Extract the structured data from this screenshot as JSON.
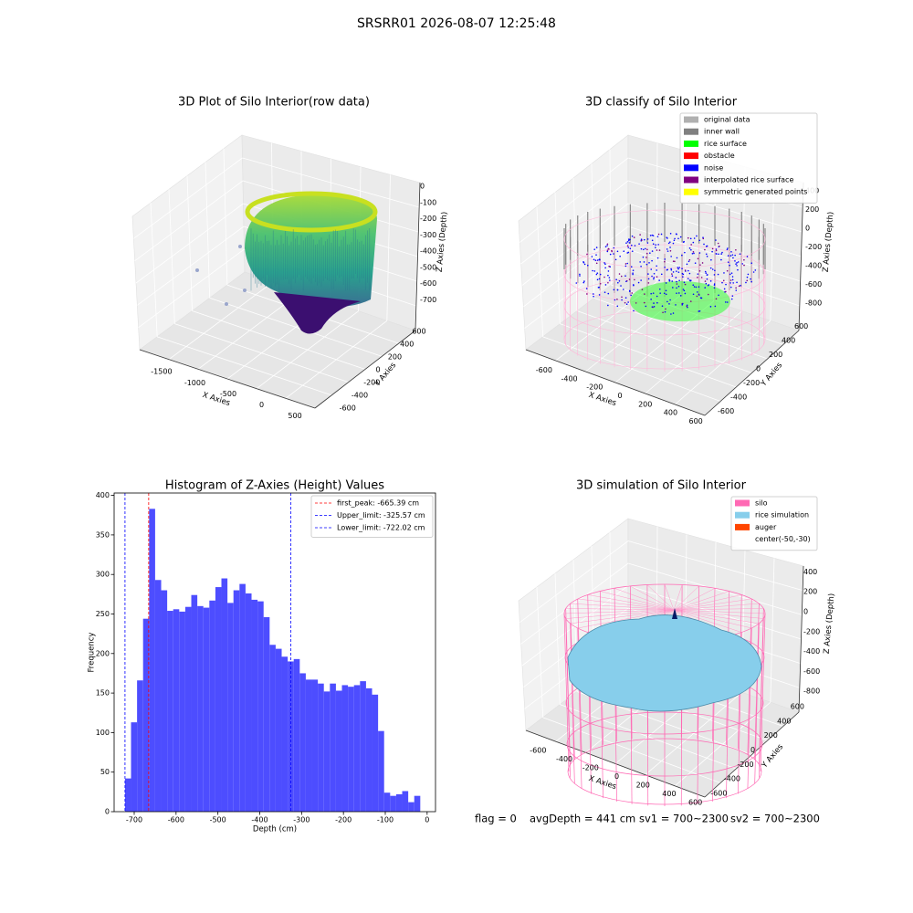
{
  "title": "SRSRR01 2026-08-07 12:25:48",
  "footer": [
    "flag = 0",
    "avgDepth = 441 cm",
    "sv1 = 700~2300",
    "sv2 = 700~2300"
  ],
  "chart_data": [
    {
      "type": "scatter3d",
      "title": "3D Plot of Silo Interior(row data)",
      "xlabel": "X Axies",
      "ylabel": "Y Axies",
      "zlabel": "Z Axies (Depth)",
      "xlim": [
        -1800,
        650
      ],
      "xticks": [
        -1500,
        -1000,
        -500,
        0,
        500
      ],
      "ylim": [
        -700,
        700
      ],
      "yticks": [
        -600,
        -400,
        -200,
        0,
        200,
        400,
        600
      ],
      "zlim": [
        -760,
        40
      ],
      "zticks": [
        0,
        -100,
        -200,
        -300,
        -400,
        -500,
        -600,
        -700
      ]
    },
    {
      "type": "scatter3d",
      "title": "3D classify of Silo Interior",
      "xlabel": "X Axies",
      "ylabel": "Y Axies",
      "zlabel": "Z Axies (Depth)",
      "xlim": [
        -700,
        700
      ],
      "xticks": [
        -600,
        -400,
        -200,
        0,
        200,
        400,
        600
      ],
      "ylim": [
        -700,
        700
      ],
      "yticks": [
        -600,
        -400,
        -200,
        0,
        200,
        400,
        600
      ],
      "zlim": [
        -900,
        450
      ],
      "zticks": [
        400,
        200,
        0,
        -200,
        -400,
        -600,
        -800
      ],
      "legend": "upper right",
      "series": [
        {
          "name": "original data",
          "color": "#b0b0b0"
        },
        {
          "name": "inner wall",
          "color": "#808080"
        },
        {
          "name": "rice surface",
          "color": "#00ff00"
        },
        {
          "name": "obstacle",
          "color": "#ff0000"
        },
        {
          "name": "noise",
          "color": "#0000ff"
        },
        {
          "name": "interpolated rice surface",
          "color": "#800080"
        },
        {
          "name": "symmetric generated points",
          "color": "#ffff00"
        }
      ]
    },
    {
      "type": "histogram",
      "title": "Histogram of Z-Axies (Height) Values",
      "xlabel": "Depth (cm)",
      "ylabel": "Frequency",
      "color": "#4d4dff",
      "bins": [
        -722.0,
        -707.6,
        -693.2,
        -678.8,
        -664.4,
        -650.0,
        -635.6,
        -621.2,
        -606.8,
        -592.4,
        -578.0,
        -563.6,
        -549.2,
        -534.8,
        -520.4,
        -506.0,
        -491.6,
        -477.2,
        -462.8,
        -448.4,
        -434.0,
        -419.6,
        -405.2,
        -390.8,
        -376.4,
        -362.0,
        -347.6,
        -333.2,
        -318.8,
        -304.4,
        -290.0,
        -275.6,
        -261.2,
        -246.8,
        -232.4,
        -218.0,
        -203.6,
        -189.2,
        -174.8,
        -160.4,
        -146.0,
        -131.6,
        -117.2,
        -102.8,
        -88.4,
        -74.0,
        -59.6,
        -45.2,
        -30.8,
        -16.4
      ],
      "counts": [
        42,
        113,
        166,
        244,
        383,
        293,
        280,
        254,
        256,
        253,
        259,
        274,
        260,
        258,
        267,
        284,
        295,
        264,
        280,
        288,
        276,
        268,
        266,
        246,
        211,
        206,
        196,
        190,
        193,
        175,
        167,
        167,
        162,
        152,
        162,
        153,
        160,
        158,
        160,
        165,
        156,
        148,
        102,
        24,
        20,
        22,
        26,
        12,
        20
      ],
      "xlim": [
        -748,
        20
      ],
      "xticks": [
        -700,
        -600,
        -500,
        -400,
        -300,
        -200,
        -100,
        0
      ],
      "ylim": [
        0,
        403
      ],
      "yticks": [
        0,
        50,
        100,
        150,
        200,
        250,
        300,
        350,
        400
      ],
      "legend": "upper right",
      "vlines": [
        {
          "label": "first_peak: -665.39 cm",
          "value": -665.39,
          "color": "#ff0000"
        },
        {
          "label": "Upper_limit: -325.57 cm",
          "value": -325.57,
          "color": "#0000ff"
        },
        {
          "label": "Lower_limit: -722.02 cm",
          "value": -722.02,
          "color": "#0000ff"
        }
      ]
    },
    {
      "type": "surface3d",
      "title": "3D simulation of Silo Interior",
      "xlabel": "X Axies",
      "ylabel": "Y Axies",
      "zlabel": "Z Axies (Depth)",
      "xlim": [
        -700,
        700
      ],
      "xticks": [
        -600,
        -400,
        -200,
        0,
        200,
        400,
        600
      ],
      "ylim": [
        -700,
        700
      ],
      "yticks": [
        -600,
        -400,
        -200,
        0,
        200,
        400,
        600
      ],
      "zlim": [
        -900,
        450
      ],
      "zticks": [
        400,
        200,
        0,
        -200,
        -400,
        -600,
        -800
      ],
      "legend": "upper right",
      "series": [
        {
          "name": "silo",
          "color": "#ff69b4"
        },
        {
          "name": "rice simulation",
          "color": "#87ceeb"
        },
        {
          "name": "auger",
          "color": "#ff4500"
        },
        {
          "name": "center(-50,-30)",
          "color": "#ffffff"
        }
      ]
    }
  ]
}
